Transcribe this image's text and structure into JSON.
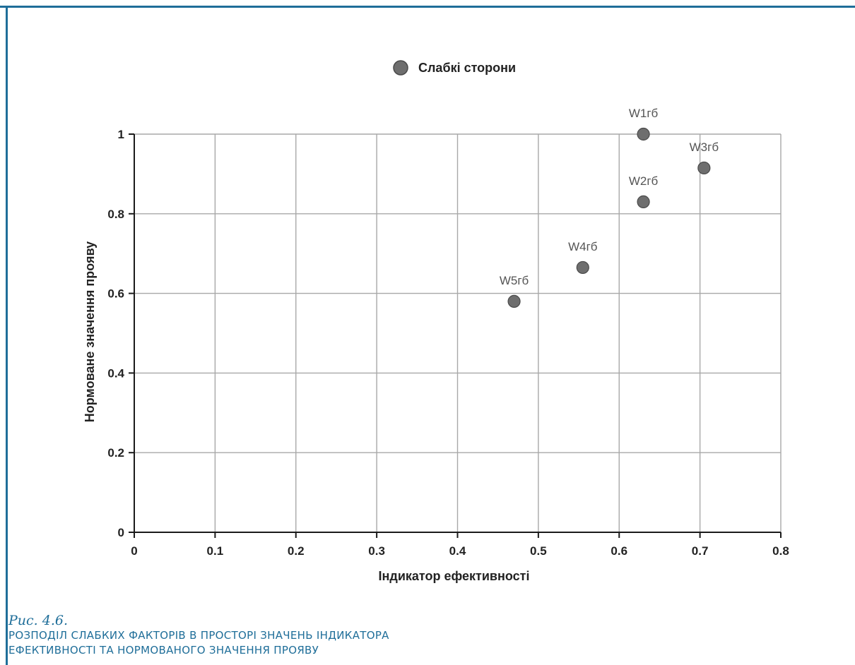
{
  "colors": {
    "frame": "#1f6e99",
    "caption": "#1f6e99",
    "marker": "#6e6e6e",
    "marker_stroke": "#4a4a4a",
    "grid": "#a8a8a8"
  },
  "caption": {
    "figure_number": "Рис. 4.6.",
    "title_line1": "РОЗПОДІЛ СЛАБКИХ ФАКТОРІВ В ПРОСТОРІ ЗНАЧЕНЬ ІНДИКАТОРА",
    "title_line2": "ЕФЕКТИВНОСТІ ТА НОРМОВАНОГО ЗНАЧЕННЯ ПРОЯВУ"
  },
  "chart_data": {
    "type": "scatter",
    "title": "",
    "xlabel": "Індикатор ефективності",
    "ylabel": "Нормоване значення прояву",
    "xlim": [
      0,
      0.8
    ],
    "ylim": [
      0,
      1
    ],
    "x_ticks": [
      "0",
      "0.1",
      "0.2",
      "0.3",
      "0.4",
      "0.5",
      "0.6",
      "0.7",
      "0.8"
    ],
    "y_ticks": [
      "0",
      "0.2",
      "0.4",
      "0.6",
      "0.8",
      "1"
    ],
    "grid": true,
    "legend_position": "top-center",
    "series": [
      {
        "name": "Слабкі сторони",
        "points": [
          {
            "label": "W1гб",
            "x": 0.63,
            "y": 1.0
          },
          {
            "label": "W2гб",
            "x": 0.63,
            "y": 0.83
          },
          {
            "label": "W3гб",
            "x": 0.705,
            "y": 0.915
          },
          {
            "label": "W4гб",
            "x": 0.555,
            "y": 0.665
          },
          {
            "label": "W5гб",
            "x": 0.47,
            "y": 0.58
          }
        ]
      }
    ]
  }
}
